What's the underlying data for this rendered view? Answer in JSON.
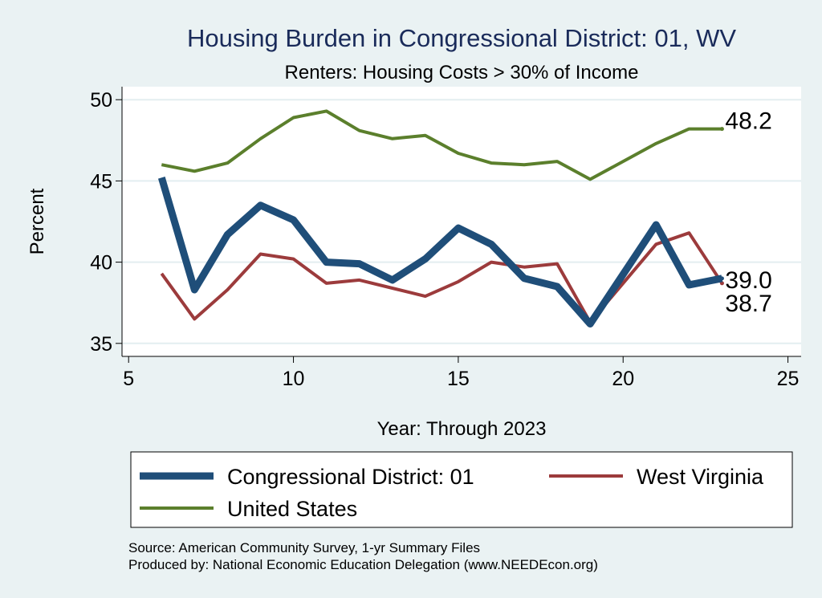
{
  "chart_data": {
    "type": "line",
    "title": "Housing Burden in Congressional District:  01, WV",
    "subtitle": "Renters: Housing Costs > 30% of Income",
    "xlabel": "Year: Through 2023",
    "ylabel": "Percent",
    "xlim": [
      4.8,
      25.4
    ],
    "ylim": [
      34.2,
      50.8
    ],
    "xticks": [
      5,
      10,
      15,
      20,
      25
    ],
    "yticks": [
      35,
      40,
      45,
      50
    ],
    "grid": true,
    "legend_position": "bottom",
    "series": [
      {
        "name": "Congressional District:  01",
        "color": "#1f4e79",
        "end_label": "39.0",
        "x": [
          6,
          7,
          8,
          9,
          10,
          11,
          12,
          13,
          14,
          15,
          16,
          17,
          18,
          19,
          21,
          22,
          23
        ],
        "y": [
          45.2,
          38.3,
          41.7,
          43.5,
          42.6,
          40.0,
          39.9,
          38.9,
          40.2,
          42.1,
          41.1,
          39.0,
          38.5,
          36.2,
          42.3,
          38.6,
          39.0
        ]
      },
      {
        "name": "West Virginia",
        "color": "#9c3b3c",
        "end_label": "38.7",
        "x": [
          6,
          7,
          8,
          9,
          10,
          11,
          12,
          13,
          14,
          15,
          16,
          17,
          18,
          19,
          21,
          22,
          23
        ],
        "y": [
          39.3,
          36.5,
          38.3,
          40.5,
          40.2,
          38.7,
          38.9,
          38.4,
          37.9,
          38.8,
          40.0,
          39.7,
          39.9,
          36.3,
          41.1,
          41.8,
          38.7
        ]
      },
      {
        "name": "United States",
        "color": "#5b7f2c",
        "end_label": "48.2",
        "x": [
          6,
          7,
          8,
          9,
          10,
          11,
          12,
          13,
          14,
          15,
          16,
          17,
          18,
          19,
          21,
          22,
          23
        ],
        "y": [
          46.0,
          45.6,
          46.1,
          47.6,
          48.9,
          49.3,
          48.1,
          47.6,
          47.8,
          46.7,
          46.1,
          46.0,
          46.2,
          45.1,
          47.3,
          48.2,
          48.2
        ]
      }
    ]
  },
  "footer": {
    "source": "Source: American Community Survey, 1-yr Summary Files",
    "produced": "Produced by: National Economic Education Delegation (www.NEEDEcon.org)"
  }
}
